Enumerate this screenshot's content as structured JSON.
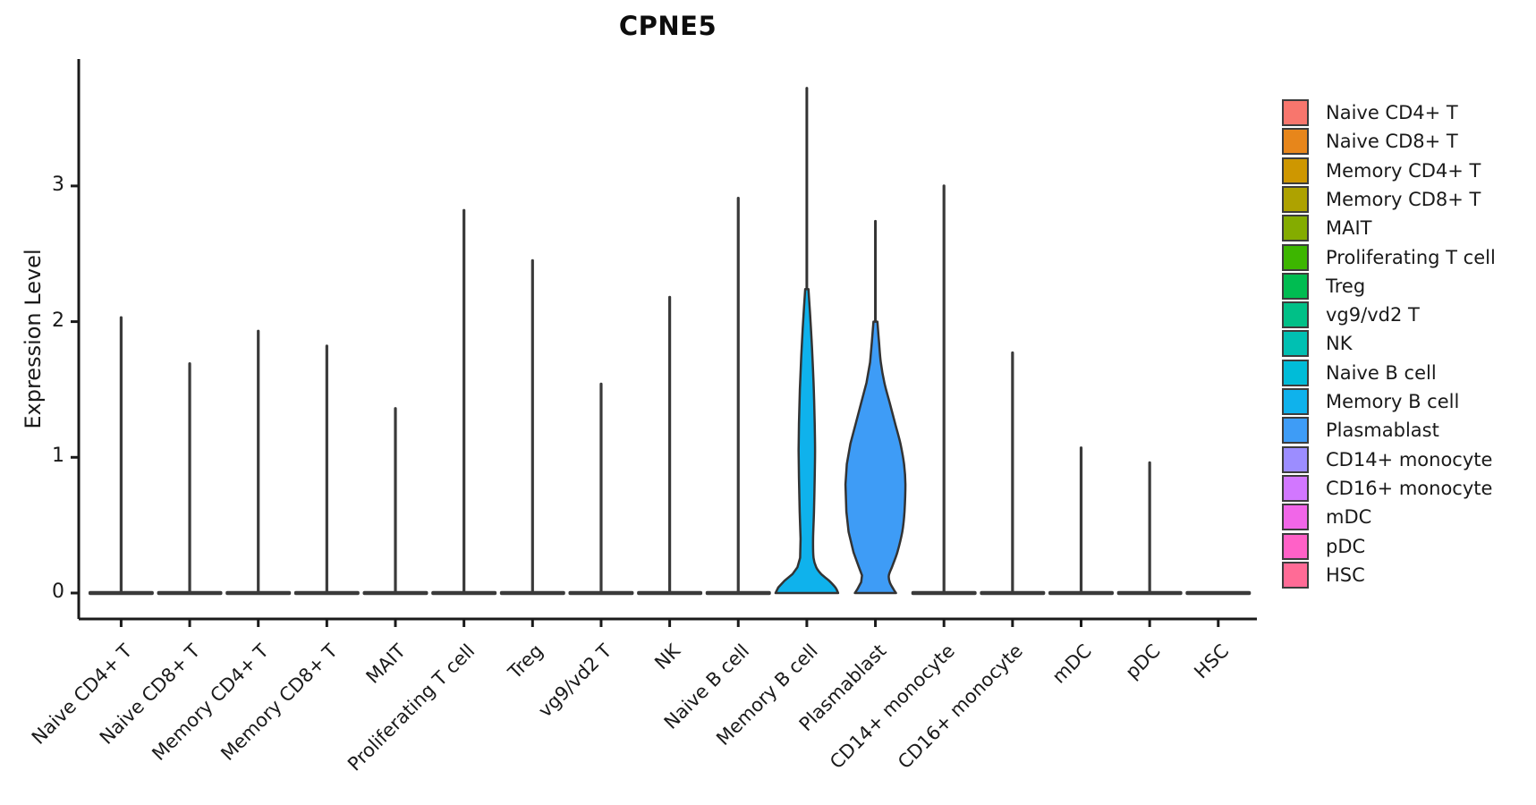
{
  "chart_data": {
    "type": "violin",
    "title": "CPNE5",
    "xlabel": "",
    "ylabel": "Expression Level",
    "yticks": [
      0,
      1,
      2,
      3
    ],
    "ylim": [
      0,
      3.94
    ],
    "grid": false,
    "legend_position": "right",
    "xtick_rotation": 45,
    "axis_color": "#1a1a1a",
    "violin_outline_color": "#333333",
    "baseline_bar_color": "#3a3a3a",
    "categories": [
      "Naive CD4+ T",
      "Naive CD8+ T",
      "Memory CD4+ T",
      "Memory CD8+ T",
      "MAIT",
      "Proliferating T cell",
      "Treg",
      "vg9/vd2 T",
      "NK",
      "Naive B cell",
      "Memory B cell",
      "Plasmablast",
      "CD14+ monocyte",
      "CD16+ monocyte",
      "mDC",
      "pDC",
      "HSC"
    ],
    "series": [
      {
        "name": "Naive CD4+ T",
        "color": "#F8766D",
        "max_expression": 2.03,
        "body_profile": null
      },
      {
        "name": "Naive CD8+ T",
        "color": "#E7861B",
        "max_expression": 1.69,
        "body_profile": null
      },
      {
        "name": "Memory CD4+ T",
        "color": "#CE9700",
        "max_expression": 1.93,
        "body_profile": null
      },
      {
        "name": "Memory CD8+ T",
        "color": "#AEA200",
        "max_expression": 1.82,
        "body_profile": null
      },
      {
        "name": "MAIT",
        "color": "#84AC00",
        "max_expression": 1.36,
        "body_profile": null
      },
      {
        "name": "Proliferating T cell",
        "color": "#3DB600",
        "max_expression": 2.82,
        "body_profile": null
      },
      {
        "name": "Treg",
        "color": "#00BC51",
        "max_expression": 2.45,
        "body_profile": null
      },
      {
        "name": "vg9/vd2 T",
        "color": "#00C087",
        "max_expression": 1.54,
        "body_profile": null
      },
      {
        "name": "NK",
        "color": "#00C0B2",
        "max_expression": 2.18,
        "body_profile": null
      },
      {
        "name": "Naive B cell",
        "color": "#00BCD8",
        "max_expression": 2.91,
        "body_profile": null
      },
      {
        "name": "Memory B cell",
        "color": "#0FB2EC",
        "max_expression": 3.72,
        "body_profile": [
          [
            0.0,
            35
          ],
          [
            0.04,
            32
          ],
          [
            0.09,
            25
          ],
          [
            0.14,
            16
          ],
          [
            0.19,
            10.5
          ],
          [
            0.26,
            7.5
          ],
          [
            0.4,
            7.0
          ],
          [
            0.6,
            8.0
          ],
          [
            0.85,
            8.8
          ],
          [
            1.05,
            9.2
          ],
          [
            1.25,
            8.8
          ],
          [
            1.5,
            7.8
          ],
          [
            1.75,
            6.2
          ],
          [
            1.95,
            4.6
          ],
          [
            2.1,
            3.2
          ],
          [
            2.24,
            1.8
          ]
        ]
      },
      {
        "name": "Plasmablast",
        "color": "#3E9CF6",
        "max_expression": 2.74,
        "body_profile": [
          [
            0.0,
            23
          ],
          [
            0.03,
            20
          ],
          [
            0.08,
            16
          ],
          [
            0.13,
            15
          ],
          [
            0.2,
            19
          ],
          [
            0.3,
            24.5
          ],
          [
            0.45,
            30
          ],
          [
            0.6,
            32.5
          ],
          [
            0.8,
            33.5
          ],
          [
            0.95,
            32
          ],
          [
            1.1,
            28
          ],
          [
            1.25,
            22
          ],
          [
            1.4,
            16
          ],
          [
            1.55,
            10
          ],
          [
            1.7,
            6
          ],
          [
            1.85,
            4
          ],
          [
            2.0,
            2.2
          ]
        ]
      },
      {
        "name": "CD14+ monocyte",
        "color": "#9C8DFF",
        "max_expression": 3.0,
        "body_profile": null
      },
      {
        "name": "CD16+ monocyte",
        "color": "#D277FF",
        "max_expression": 1.77,
        "body_profile": null
      },
      {
        "name": "mDC",
        "color": "#F166E8",
        "max_expression": 1.07,
        "body_profile": null
      },
      {
        "name": "pDC",
        "color": "#FF61C7",
        "max_expression": 0.96,
        "body_profile": null
      },
      {
        "name": "HSC",
        "color": "#FF6B96",
        "max_expression": 0.0,
        "body_profile": null
      }
    ]
  }
}
